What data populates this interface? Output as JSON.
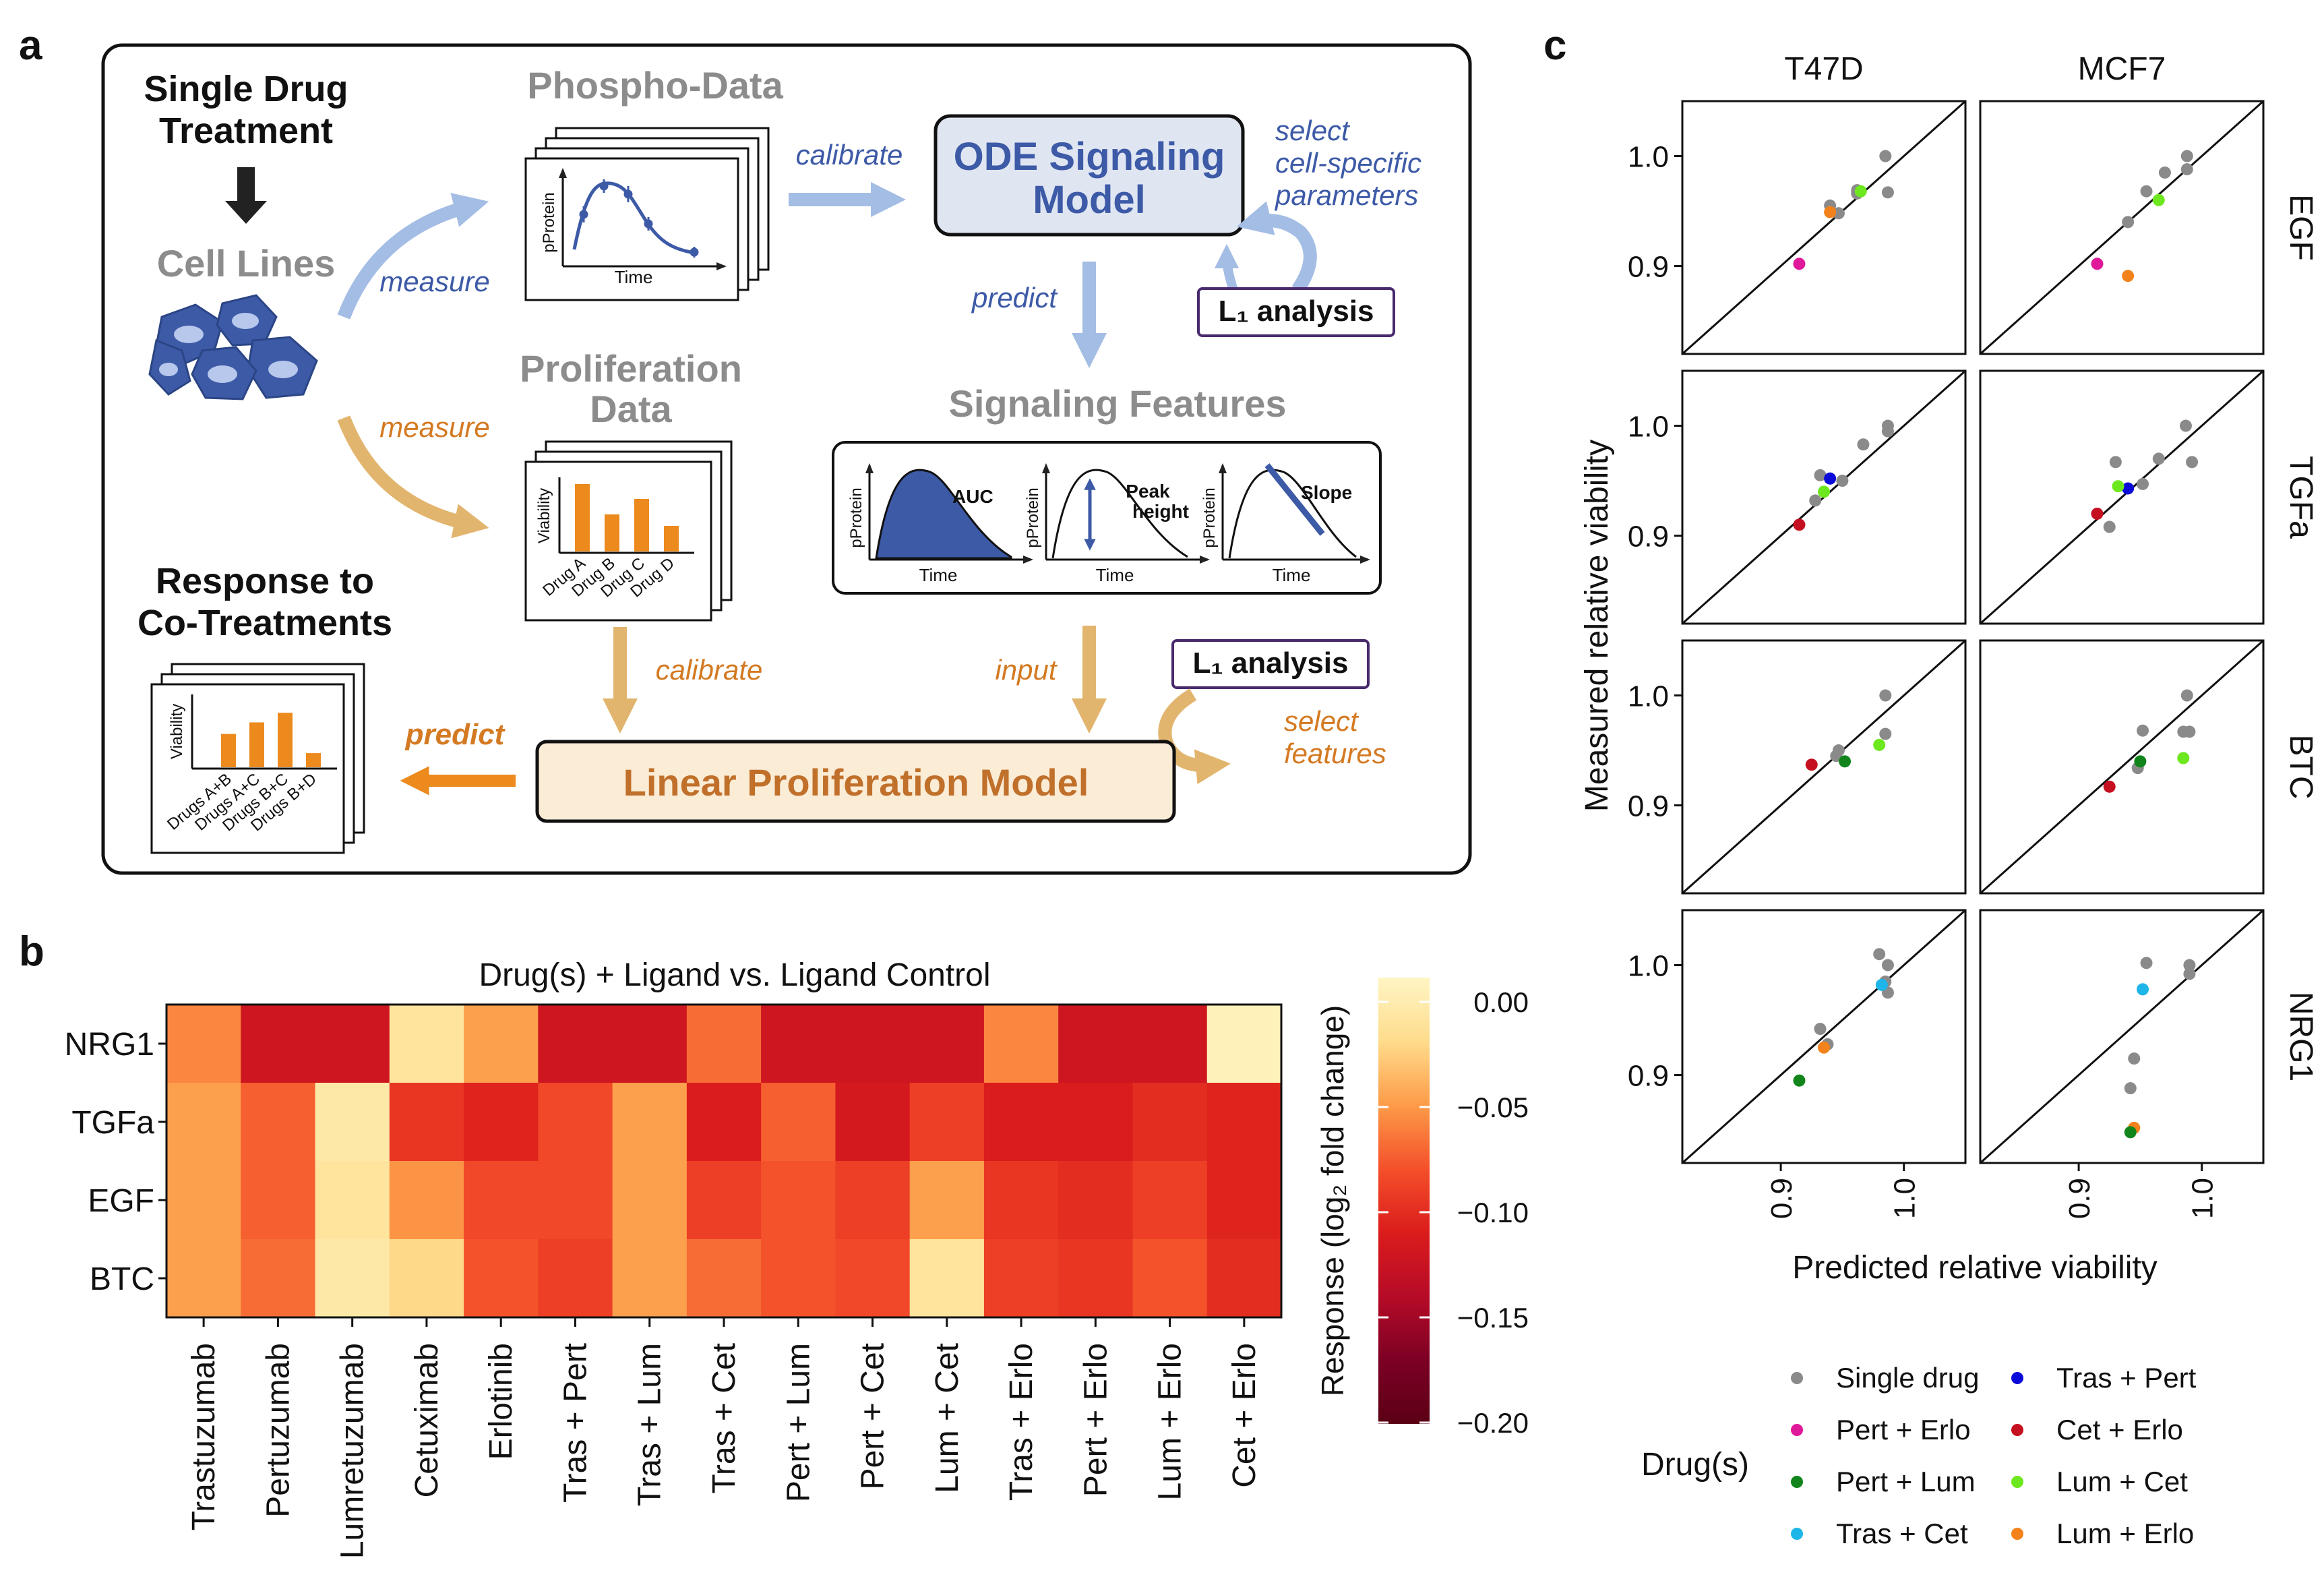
{
  "panel_labels": {
    "a": "a",
    "b": "b",
    "c": "c"
  },
  "workflow": {
    "single_drug": [
      "Single Drug",
      "Treatment"
    ],
    "cell_lines": "Cell Lines",
    "measure_1": "measure",
    "measure_2": "measure",
    "phospho_data": "Phospho-Data",
    "phospho_plot": {
      "ylabel": "pProtein",
      "xlabel": "Time"
    },
    "calibrate_1": "calibrate",
    "ode_model": [
      "ODE Signaling",
      "Model"
    ],
    "select_params": [
      "select",
      "cell-specific",
      "parameters"
    ],
    "l1_analysis_1": "L₁ analysis",
    "predict_1": "predict",
    "signaling_features": "Signaling Features",
    "features": [
      {
        "ylabel": "pProtein",
        "xlabel": "Time",
        "label": "AUC"
      },
      {
        "ylabel": "pProtein",
        "xlabel": "Time",
        "label": [
          "Peak",
          "height"
        ]
      },
      {
        "ylabel": "pProtein",
        "xlabel": "Time",
        "label": "Slope"
      }
    ],
    "proliferation_data": [
      "Proliferation",
      "Data"
    ],
    "prolif_plot": {
      "ylabel": "Viability",
      "bars": [
        "Drug A",
        "Drug B",
        "Drug C",
        "Drug D"
      ],
      "values": [
        1.0,
        0.55,
        0.78,
        0.38
      ]
    },
    "calibrate_2": "calibrate",
    "input": "input",
    "l1_analysis_2": "L₁ analysis",
    "select_features": [
      "select",
      "features"
    ],
    "linear_model": "Linear Proliferation Model",
    "predict_2": "predict",
    "response": [
      "Response to",
      "Co-Treatments"
    ],
    "cotreat_plot": {
      "ylabel": "Viability",
      "bars": [
        "Drugs A+B",
        "Drugs A+C",
        "Drugs B+C",
        "Drugs B+D"
      ],
      "values": [
        0.52,
        0.7,
        0.85,
        0.22
      ]
    }
  },
  "heatmap": {
    "title": "Drug(s)  + Ligand vs. Ligand Control",
    "rows": [
      "NRG1",
      "TGFa",
      "EGF",
      "BTC"
    ],
    "cols": [
      "Trastuzumab",
      "Pertuzumab",
      "Lumretuzumab",
      "Cetuximab",
      "Erlotinib",
      "Tras + Pert",
      "Tras + Lum",
      "Tras + Cet",
      "Pert + Lum",
      "Pert + Cet",
      "Lum + Cet",
      "Tras + Erlo",
      "Pert + Erlo",
      "Lum + Erlo",
      "Cet + Erlo"
    ],
    "values": [
      [
        -0.065,
        -0.125,
        -0.125,
        -0.02,
        -0.055,
        -0.125,
        -0.125,
        -0.075,
        -0.125,
        -0.125,
        -0.125,
        -0.065,
        -0.125,
        -0.125,
        -0.005
      ],
      [
        -0.055,
        -0.08,
        -0.015,
        -0.1,
        -0.11,
        -0.09,
        -0.055,
        -0.115,
        -0.08,
        -0.12,
        -0.095,
        -0.115,
        -0.115,
        -0.105,
        -0.11
      ],
      [
        -0.055,
        -0.08,
        -0.02,
        -0.06,
        -0.09,
        -0.09,
        -0.055,
        -0.095,
        -0.085,
        -0.095,
        -0.055,
        -0.1,
        -0.105,
        -0.095,
        -0.11
      ],
      [
        -0.055,
        -0.075,
        -0.015,
        -0.03,
        -0.085,
        -0.095,
        -0.055,
        -0.075,
        -0.085,
        -0.09,
        -0.02,
        -0.095,
        -0.1,
        -0.085,
        -0.105
      ]
    ],
    "colorbar": {
      "title": "Response (log₂ fold change)",
      "ticks": [
        "0.00",
        "−0.05",
        "−0.10",
        "−0.15",
        "−0.20"
      ],
      "range": [
        -0.2,
        0.0
      ],
      "stops": [
        "#fff5c4",
        "#fedc8c",
        "#fd9b48",
        "#f4502a",
        "#db1c1c",
        "#b60b27",
        "#7c0024",
        "#5b0015"
      ]
    }
  },
  "chart_data": {
    "type": "scatter",
    "xlabel": "Predicted relative viability",
    "ylabel": "Measured relative viability",
    "columns": [
      "T47D",
      "MCF7"
    ],
    "rows": [
      "EGF",
      "TGFa",
      "BTC",
      "NRG1"
    ],
    "xlim": [
      0.82,
      1.05
    ],
    "ylim": [
      0.82,
      1.05
    ],
    "yticks": [
      "0.9",
      "1.0"
    ],
    "xticks": [
      "0.9",
      "1.0"
    ],
    "legend": {
      "title": "Drug(s)",
      "entries": [
        {
          "label": "Single drug",
          "color": "#8a8a8a"
        },
        {
          "label": "Tras + Pert",
          "color": "#0b0bd9"
        },
        {
          "label": "Pert + Erlo",
          "color": "#e0189a"
        },
        {
          "label": "Cet + Erlo",
          "color": "#c41020"
        },
        {
          "label": "Pert + Lum",
          "color": "#11851b"
        },
        {
          "label": "Lum + Cet",
          "color": "#6ee81e"
        },
        {
          "label": "Tras + Cet",
          "color": "#1eb6e8"
        },
        {
          "label": "Lum + Erlo",
          "color": "#f3821c"
        }
      ]
    },
    "panels": [
      [
        {
          "points": [
            [
              0.985,
              1.0
            ],
            [
              0.987,
              0.967
            ],
            [
              0.962,
              0.969
            ],
            [
              0.962,
              0.966
            ],
            [
              0.947,
              0.948
            ],
            [
              0.94,
              0.955
            ],
            [
              0.915,
              0.902
            ],
            [
              0.94,
              0.949
            ],
            [
              0.965,
              0.968
            ]
          ],
          "colors": [
            "#8a8a8a",
            "#8a8a8a",
            "#8a8a8a",
            "#8a8a8a",
            "#8a8a8a",
            "#8a8a8a",
            "#e0189a",
            "#f3821c",
            "#6ee81e"
          ]
        },
        {
          "points": [
            [
              0.988,
              1.0
            ],
            [
              0.988,
              0.988
            ],
            [
              0.97,
              0.985
            ],
            [
              0.955,
              0.968
            ],
            [
              0.94,
              0.94
            ],
            [
              0.915,
              0.902
            ],
            [
              0.94,
              0.891
            ],
            [
              0.965,
              0.96
            ]
          ],
          "colors": [
            "#8a8a8a",
            "#8a8a8a",
            "#8a8a8a",
            "#8a8a8a",
            "#8a8a8a",
            "#e0189a",
            "#f3821c",
            "#6ee81e"
          ]
        }
      ],
      [
        {
          "points": [
            [
              0.987,
              1.0
            ],
            [
              0.987,
              0.995
            ],
            [
              0.967,
              0.983
            ],
            [
              0.95,
              0.95
            ],
            [
              0.932,
              0.955
            ],
            [
              0.928,
              0.932
            ],
            [
              0.94,
              0.952
            ],
            [
              0.935,
              0.94
            ],
            [
              0.915,
              0.91
            ]
          ],
          "colors": [
            "#8a8a8a",
            "#8a8a8a",
            "#8a8a8a",
            "#8a8a8a",
            "#8a8a8a",
            "#8a8a8a",
            "#0b0bd9",
            "#6ee81e",
            "#c41020"
          ]
        },
        {
          "points": [
            [
              0.987,
              1.0
            ],
            [
              0.992,
              0.967
            ],
            [
              0.965,
              0.97
            ],
            [
              0.952,
              0.947
            ],
            [
              0.93,
              0.967
            ],
            [
              0.925,
              0.908
            ],
            [
              0.94,
              0.943
            ],
            [
              0.932,
              0.945
            ],
            [
              0.915,
              0.92
            ]
          ],
          "colors": [
            "#8a8a8a",
            "#8a8a8a",
            "#8a8a8a",
            "#8a8a8a",
            "#8a8a8a",
            "#8a8a8a",
            "#0b0bd9",
            "#6ee81e",
            "#c41020"
          ]
        }
      ],
      [
        {
          "points": [
            [
              0.985,
              1.0
            ],
            [
              0.985,
              0.965
            ],
            [
              0.947,
              0.95
            ],
            [
              0.945,
              0.945
            ],
            [
              0.952,
              0.94
            ],
            [
              0.98,
              0.955
            ],
            [
              0.925,
              0.937
            ]
          ],
          "colors": [
            "#8a8a8a",
            "#8a8a8a",
            "#8a8a8a",
            "#8a8a8a",
            "#11851b",
            "#6ee81e",
            "#c41020"
          ]
        },
        {
          "points": [
            [
              0.988,
              1.0
            ],
            [
              0.985,
              0.967
            ],
            [
              0.99,
              0.967
            ],
            [
              0.952,
              0.968
            ],
            [
              0.948,
              0.934
            ],
            [
              0.95,
              0.94
            ],
            [
              0.985,
              0.943
            ],
            [
              0.925,
              0.917
            ]
          ],
          "colors": [
            "#8a8a8a",
            "#8a8a8a",
            "#8a8a8a",
            "#8a8a8a",
            "#8a8a8a",
            "#11851b",
            "#6ee81e",
            "#c41020"
          ]
        }
      ],
      [
        {
          "points": [
            [
              0.98,
              1.01
            ],
            [
              0.987,
              1.0
            ],
            [
              0.985,
              0.985
            ],
            [
              0.987,
              0.975
            ],
            [
              0.932,
              0.942
            ],
            [
              0.938,
              0.928
            ],
            [
              0.982,
              0.982
            ],
            [
              0.935,
              0.925
            ],
            [
              0.915,
              0.895
            ]
          ],
          "colors": [
            "#8a8a8a",
            "#8a8a8a",
            "#8a8a8a",
            "#8a8a8a",
            "#8a8a8a",
            "#8a8a8a",
            "#1eb6e8",
            "#f3821c",
            "#11851b"
          ]
        },
        {
          "points": [
            [
              0.955,
              1.002
            ],
            [
              0.99,
              1.0
            ],
            [
              0.99,
              0.992
            ],
            [
              0.945,
              0.915
            ],
            [
              0.942,
              0.888
            ],
            [
              0.952,
              0.978
            ],
            [
              0.945,
              0.852
            ],
            [
              0.942,
              0.848
            ]
          ],
          "colors": [
            "#8a8a8a",
            "#8a8a8a",
            "#8a8a8a",
            "#8a8a8a",
            "#8a8a8a",
            "#1eb6e8",
            "#f3821c",
            "#11851b"
          ]
        }
      ]
    ]
  }
}
